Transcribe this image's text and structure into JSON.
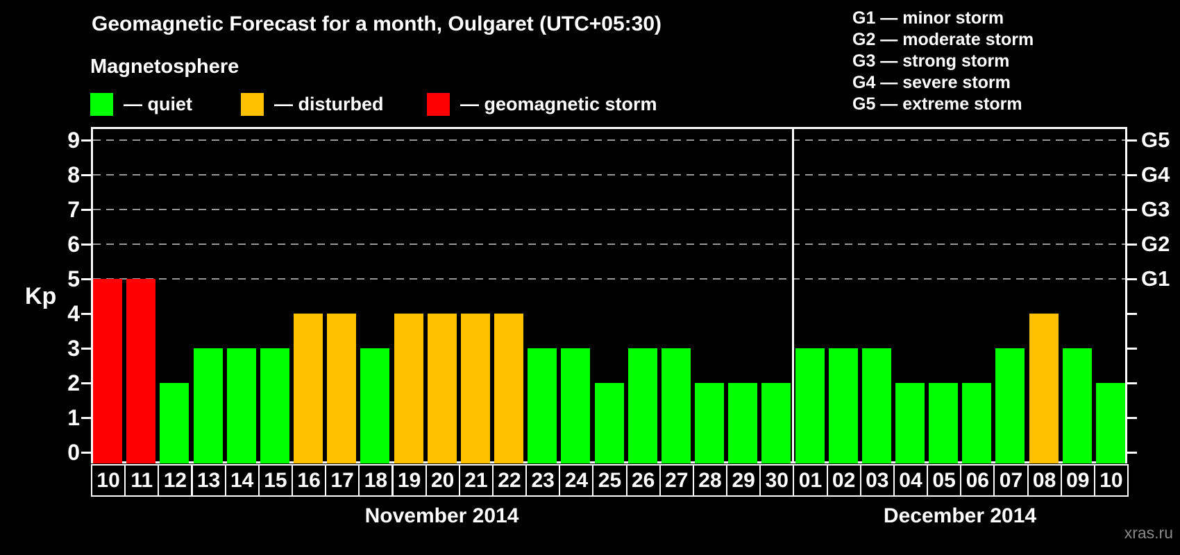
{
  "title": "Geomagnetic Forecast for a month, Oulgaret (UTC+05:30)",
  "magnetosphere_legend": {
    "heading": "Magnetosphere",
    "items": [
      {
        "key": "quiet",
        "label": "— quiet",
        "color": "#00FF00"
      },
      {
        "key": "disturbed",
        "label": "— disturbed",
        "color": "#FFC000"
      },
      {
        "key": "storm",
        "label": "— geomagnetic storm",
        "color": "#FF0000"
      }
    ]
  },
  "g_legend": [
    "G1 — minor storm",
    "G2 — moderate storm",
    "G3 — strong storm",
    "G4 — severe storm",
    "G5 — extreme storm"
  ],
  "watermark": "xras.ru",
  "chart_data": {
    "type": "bar",
    "title": "Geomagnetic Forecast for a month, Oulgaret (UTC+05:30)",
    "ylabel": "Kp",
    "ylim": [
      0,
      9
    ],
    "yticks": [
      0,
      1,
      2,
      3,
      4,
      5,
      6,
      7,
      8,
      9
    ],
    "gridlines_at": [
      5,
      6,
      7,
      8,
      9
    ],
    "grid": "dashed horizontal lines at Kp 5-9 only",
    "legend_position": "top-left swatches, G-scale list top-right",
    "right_axis": [
      {
        "kp": 5,
        "label": "G1"
      },
      {
        "kp": 6,
        "label": "G2"
      },
      {
        "kp": 7,
        "label": "G3"
      },
      {
        "kp": 8,
        "label": "G4"
      },
      {
        "kp": 9,
        "label": "G5"
      }
    ],
    "colors": {
      "quiet": "#00FF00",
      "disturbed": "#FFC000",
      "storm": "#FF0000"
    },
    "months": [
      {
        "label": "November 2014",
        "categories": [
          "10",
          "11",
          "12",
          "13",
          "14",
          "15",
          "16",
          "17",
          "18",
          "19",
          "20",
          "21",
          "22",
          "23",
          "24",
          "25",
          "26",
          "27",
          "28",
          "29",
          "30"
        ],
        "values": [
          5,
          5,
          2,
          3,
          3,
          3,
          4,
          4,
          3,
          4,
          4,
          4,
          4,
          3,
          3,
          2,
          3,
          3,
          2,
          2,
          2
        ],
        "states": [
          "storm",
          "storm",
          "quiet",
          "quiet",
          "quiet",
          "quiet",
          "disturbed",
          "disturbed",
          "quiet",
          "disturbed",
          "disturbed",
          "disturbed",
          "disturbed",
          "quiet",
          "quiet",
          "quiet",
          "quiet",
          "quiet",
          "quiet",
          "quiet",
          "quiet"
        ]
      },
      {
        "label": "December 2014",
        "categories": [
          "01",
          "02",
          "03",
          "04",
          "05",
          "06",
          "07",
          "08",
          "09",
          "10"
        ],
        "values": [
          3,
          3,
          3,
          2,
          2,
          2,
          3,
          4,
          3,
          2
        ],
        "states": [
          "quiet",
          "quiet",
          "quiet",
          "quiet",
          "quiet",
          "quiet",
          "quiet",
          "disturbed",
          "quiet",
          "quiet"
        ]
      }
    ]
  }
}
